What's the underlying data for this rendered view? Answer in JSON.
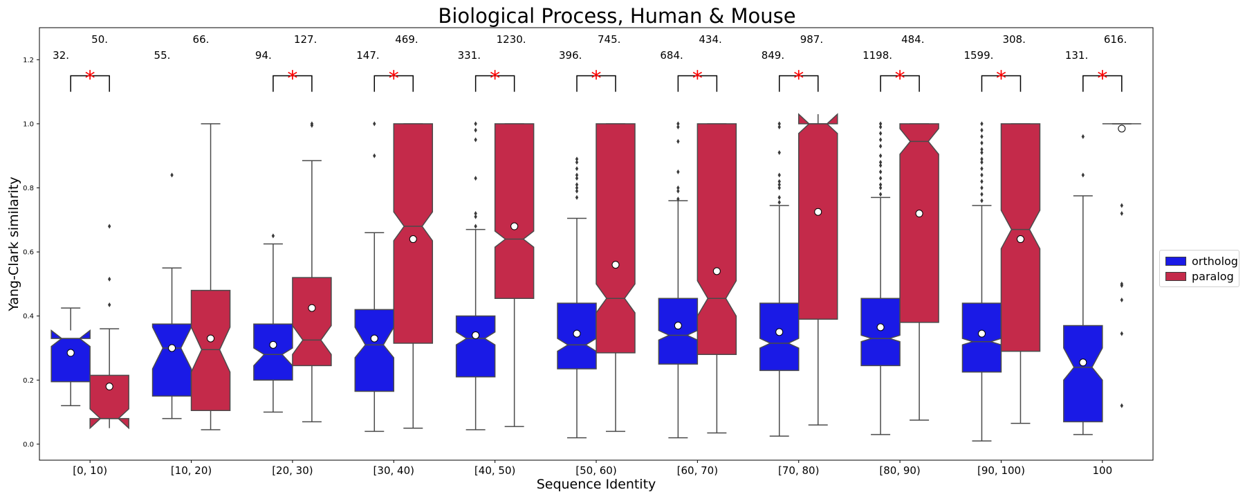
{
  "chart_data": {
    "type": "box",
    "title": "Biological Process, Human & Mouse",
    "xlabel": "Sequence Identity",
    "ylabel": "Yang-Clark similarity",
    "ylim": [
      -0.05,
      1.3
    ],
    "yticks": [
      0.0,
      0.2,
      0.4,
      0.6,
      0.8,
      1.0,
      1.2
    ],
    "ytick_labels": [
      "0.0",
      "0.2",
      "0.4",
      "0.6",
      "0.8",
      "1.0",
      "1.2"
    ],
    "grid": false,
    "legend_position": "right",
    "notched": true,
    "categories": [
      "[0, 10)",
      "[10, 20)",
      "[20, 30)",
      "[30, 40)",
      "[40, 50)",
      "[50, 60)",
      "[60, 70)",
      "[70, 80)",
      "[80, 90)",
      "[90, 100)",
      "100"
    ],
    "significance": [
      "*",
      "",
      "*",
      "*",
      "*",
      "*",
      "*",
      "*",
      "*",
      "*",
      "*"
    ],
    "series": [
      {
        "name": "ortholog",
        "color": "#1a1ae6",
        "counts": [
          "32.",
          "55.",
          "94.",
          "147.",
          "331.",
          "396.",
          "684.",
          "849.",
          "1198.",
          "1599.",
          "131."
        ],
        "boxes": [
          {
            "whislo": 0.12,
            "q1": 0.195,
            "med": 0.33,
            "q3": 0.33,
            "whishi": 0.425,
            "notch_lo": 0.305,
            "notch_hi": 0.355,
            "mean": 0.285,
            "fliers": []
          },
          {
            "whislo": 0.08,
            "q1": 0.15,
            "med": 0.3,
            "q3": 0.375,
            "whishi": 0.55,
            "notch_lo": 0.235,
            "notch_hi": 0.365,
            "mean": 0.3,
            "fliers": [
              0.84
            ]
          },
          {
            "whislo": 0.1,
            "q1": 0.2,
            "med": 0.28,
            "q3": 0.375,
            "whishi": 0.625,
            "notch_lo": 0.245,
            "notch_hi": 0.3,
            "mean": 0.31,
            "fliers": [
              0.65
            ]
          },
          {
            "whislo": 0.04,
            "q1": 0.165,
            "med": 0.31,
            "q3": 0.42,
            "whishi": 0.66,
            "notch_lo": 0.27,
            "notch_hi": 0.365,
            "mean": 0.33,
            "fliers": [
              0.9,
              1.0
            ]
          },
          {
            "whislo": 0.045,
            "q1": 0.21,
            "med": 0.33,
            "q3": 0.4,
            "whishi": 0.67,
            "notch_lo": 0.31,
            "notch_hi": 0.35,
            "mean": 0.34,
            "fliers": [
              0.68,
              0.71,
              0.72,
              0.83,
              0.95,
              0.98,
              1.0
            ]
          },
          {
            "whislo": 0.02,
            "q1": 0.235,
            "med": 0.31,
            "q3": 0.44,
            "whishi": 0.705,
            "notch_lo": 0.29,
            "notch_hi": 0.33,
            "mean": 0.345,
            "fliers": [
              0.77,
              0.79,
              0.8,
              0.81,
              0.83,
              0.84,
              0.86,
              0.88,
              0.89
            ]
          },
          {
            "whislo": 0.02,
            "q1": 0.25,
            "med": 0.34,
            "q3": 0.455,
            "whishi": 0.76,
            "notch_lo": 0.325,
            "notch_hi": 0.355,
            "mean": 0.37,
            "fliers": [
              0.765,
              0.79,
              0.8,
              0.85,
              0.945,
              0.99,
              1.0
            ]
          },
          {
            "whislo": 0.025,
            "q1": 0.23,
            "med": 0.315,
            "q3": 0.44,
            "whishi": 0.745,
            "notch_lo": 0.3,
            "notch_hi": 0.33,
            "mean": 0.35,
            "fliers": [
              0.755,
              0.77,
              0.8,
              0.81,
              0.82,
              0.84,
              0.91,
              0.99,
              1.0
            ]
          },
          {
            "whislo": 0.03,
            "q1": 0.245,
            "med": 0.33,
            "q3": 0.455,
            "whishi": 0.77,
            "notch_lo": 0.32,
            "notch_hi": 0.34,
            "mean": 0.365,
            "fliers": [
              0.78,
              0.8,
              0.81,
              0.83,
              0.85,
              0.87,
              0.88,
              0.9,
              0.93,
              0.95,
              0.97,
              0.99,
              1.0
            ]
          },
          {
            "whislo": 0.01,
            "q1": 0.225,
            "med": 0.32,
            "q3": 0.44,
            "whishi": 0.745,
            "notch_lo": 0.31,
            "notch_hi": 0.33,
            "mean": 0.345,
            "fliers": [
              0.76,
              0.78,
              0.8,
              0.82,
              0.84,
              0.86,
              0.88,
              0.89,
              0.91,
              0.92,
              0.94,
              0.96,
              0.98,
              1.0
            ]
          },
          {
            "whislo": 0.03,
            "q1": 0.07,
            "med": 0.24,
            "q3": 0.37,
            "whishi": 0.775,
            "notch_lo": 0.2,
            "notch_hi": 0.3,
            "mean": 0.255,
            "fliers": [
              0.84,
              0.96
            ]
          }
        ]
      },
      {
        "name": "paralog",
        "color": "#c42a4a",
        "counts": [
          "50.",
          "66.",
          "127.",
          "469.",
          "1230.",
          "745.",
          "434.",
          "987.",
          "484.",
          "308.",
          "616."
        ],
        "boxes": [
          {
            "whislo": 0.08,
            "q1": 0.08,
            "med": 0.08,
            "q3": 0.215,
            "whishi": 0.36,
            "notch_lo": 0.05,
            "notch_hi": 0.11,
            "mean": 0.18,
            "fliers": [
              0.435,
              0.515,
              0.68
            ]
          },
          {
            "whislo": 0.045,
            "q1": 0.105,
            "med": 0.295,
            "q3": 0.48,
            "whishi": 1.0,
            "notch_lo": 0.225,
            "notch_hi": 0.365,
            "mean": 0.33,
            "fliers": []
          },
          {
            "whislo": 0.07,
            "q1": 0.245,
            "med": 0.325,
            "q3": 0.52,
            "whishi": 0.885,
            "notch_lo": 0.28,
            "notch_hi": 0.37,
            "mean": 0.425,
            "fliers": [
              0.995,
              1.0
            ]
          },
          {
            "whislo": 0.05,
            "q1": 0.315,
            "med": 0.68,
            "q3": 1.0,
            "whishi": 1.0,
            "notch_lo": 0.635,
            "notch_hi": 0.725,
            "mean": 0.64,
            "fliers": []
          },
          {
            "whislo": 0.055,
            "q1": 0.455,
            "med": 0.64,
            "q3": 1.0,
            "whishi": 1.0,
            "notch_lo": 0.615,
            "notch_hi": 0.665,
            "mean": 0.68,
            "fliers": []
          },
          {
            "whislo": 0.04,
            "q1": 0.285,
            "med": 0.455,
            "q3": 1.0,
            "whishi": 1.0,
            "notch_lo": 0.41,
            "notch_hi": 0.5,
            "mean": 0.56,
            "fliers": []
          },
          {
            "whislo": 0.035,
            "q1": 0.28,
            "med": 0.455,
            "q3": 1.0,
            "whishi": 1.0,
            "notch_lo": 0.4,
            "notch_hi": 0.51,
            "mean": 0.54,
            "fliers": []
          },
          {
            "whislo": 0.06,
            "q1": 0.39,
            "med": 1.0,
            "q3": 1.0,
            "whishi": 1.0,
            "notch_lo": 0.97,
            "notch_hi": 1.03,
            "mean": 0.725,
            "fliers": []
          },
          {
            "whislo": 0.075,
            "q1": 0.38,
            "med": 0.945,
            "q3": 1.0,
            "whishi": 1.0,
            "notch_lo": 0.905,
            "notch_hi": 0.985,
            "mean": 0.72,
            "fliers": []
          },
          {
            "whislo": 0.065,
            "q1": 0.29,
            "med": 0.67,
            "q3": 1.0,
            "whishi": 1.0,
            "notch_lo": 0.61,
            "notch_hi": 0.73,
            "mean": 0.64,
            "fliers": []
          },
          {
            "whislo": 1.0,
            "q1": 1.0,
            "med": 1.0,
            "q3": 1.0,
            "whishi": 1.0,
            "notch_lo": 1.0,
            "notch_hi": 1.0,
            "mean": 0.985,
            "fliers": [
              0.12,
              0.345,
              0.45,
              0.495,
              0.5,
              0.72,
              0.745
            ]
          }
        ]
      }
    ]
  }
}
